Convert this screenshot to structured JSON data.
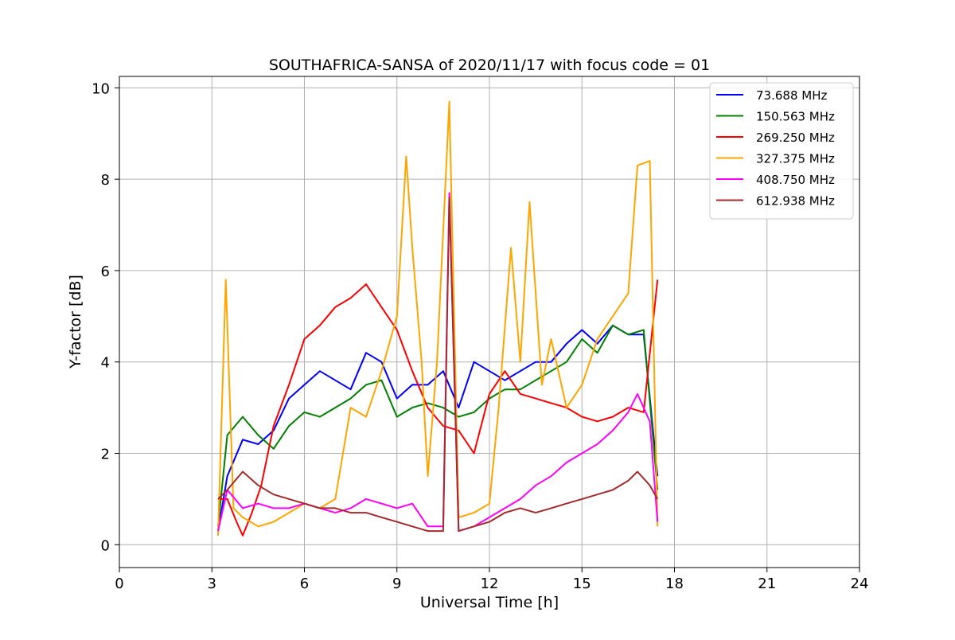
{
  "chart_data": {
    "type": "line",
    "title": "SOUTHAFRICA-SANSA of 2020/11/17 with focus code = 01",
    "xlabel": "Universal Time [h]",
    "ylabel": "Y-factor [dB]",
    "xlim": [
      0,
      24
    ],
    "ylim": [
      -0.5,
      10.25
    ],
    "xticks": [
      0,
      3,
      6,
      9,
      12,
      15,
      18,
      21,
      24
    ],
    "yticks": [
      0,
      2,
      4,
      6,
      8,
      10
    ],
    "grid": true,
    "legend_position": "top-right",
    "series": [
      {
        "name": "73.688 MHz",
        "color": "#0000ff",
        "x": [
          3.2,
          3.5,
          4.0,
          4.5,
          5.0,
          5.5,
          6.0,
          6.5,
          7.0,
          7.5,
          8.0,
          8.5,
          9.0,
          9.5,
          10.0,
          10.5,
          11.0,
          11.5,
          12.0,
          12.5,
          13.0,
          13.5,
          14.0,
          14.5,
          15.0,
          15.5,
          16.0,
          16.5,
          17.0,
          17.45
        ],
        "y": [
          0.3,
          1.5,
          2.3,
          2.2,
          2.5,
          3.2,
          3.5,
          3.8,
          3.6,
          3.4,
          4.2,
          4.0,
          3.2,
          3.5,
          3.5,
          3.8,
          3.0,
          4.0,
          3.8,
          3.6,
          3.8,
          4.0,
          4.0,
          4.4,
          4.7,
          4.4,
          4.8,
          4.6,
          4.6,
          1.5
        ]
      },
      {
        "name": "150.563 MHz",
        "color": "#008000",
        "x": [
          3.2,
          3.5,
          4.0,
          4.5,
          5.0,
          5.5,
          6.0,
          6.5,
          7.0,
          7.5,
          8.0,
          8.5,
          9.0,
          9.5,
          10.0,
          10.5,
          11.0,
          11.5,
          12.0,
          12.5,
          13.0,
          13.5,
          14.0,
          14.5,
          15.0,
          15.5,
          16.0,
          16.5,
          17.0,
          17.45
        ],
        "y": [
          0.4,
          2.4,
          2.8,
          2.4,
          2.1,
          2.6,
          2.9,
          2.8,
          3.0,
          3.2,
          3.5,
          3.6,
          2.8,
          3.0,
          3.1,
          3.0,
          2.8,
          2.9,
          3.2,
          3.4,
          3.4,
          3.6,
          3.8,
          4.0,
          4.5,
          4.2,
          4.8,
          4.6,
          4.7,
          1.2
        ]
      },
      {
        "name": "269.250 MHz",
        "color": "#ff0000",
        "x": [
          3.2,
          3.5,
          3.8,
          4.0,
          4.3,
          4.6,
          5.0,
          5.5,
          6.0,
          6.5,
          7.0,
          7.5,
          8.0,
          8.5,
          9.0,
          9.5,
          10.0,
          10.5,
          11.0,
          11.5,
          12.0,
          12.5,
          13.0,
          13.5,
          14.0,
          14.5,
          15.0,
          15.5,
          16.0,
          16.5,
          17.0,
          17.45
        ],
        "y": [
          1.0,
          1.0,
          0.5,
          0.2,
          0.7,
          1.3,
          2.6,
          3.5,
          4.5,
          4.8,
          5.2,
          5.4,
          5.7,
          5.2,
          4.7,
          3.8,
          3.0,
          2.6,
          2.5,
          2.0,
          3.3,
          3.8,
          3.3,
          3.2,
          3.1,
          3.0,
          2.8,
          2.7,
          2.8,
          3.0,
          2.9,
          5.8
        ]
      },
      {
        "name": "327.375 MHz",
        "color": "#ffa500",
        "x": [
          3.2,
          3.45,
          3.7,
          4.0,
          4.5,
          5.0,
          5.5,
          6.0,
          6.5,
          7.0,
          7.5,
          8.0,
          8.5,
          9.0,
          9.3,
          9.5,
          9.8,
          10.0,
          10.3,
          10.7,
          11.0,
          11.5,
          12.0,
          12.3,
          12.7,
          13.0,
          13.3,
          13.7,
          14.0,
          14.5,
          15.0,
          15.5,
          16.0,
          16.5,
          16.8,
          17.2,
          17.45
        ],
        "y": [
          0.2,
          5.8,
          0.8,
          0.6,
          0.4,
          0.5,
          0.7,
          0.9,
          0.8,
          1.0,
          3.0,
          2.8,
          3.8,
          5.0,
          8.5,
          6.5,
          4.0,
          1.5,
          4.0,
          9.7,
          0.6,
          0.7,
          0.9,
          3.0,
          6.5,
          4.0,
          7.5,
          3.5,
          4.5,
          3.0,
          3.5,
          4.5,
          5.0,
          5.5,
          8.3,
          8.4,
          0.4
        ]
      },
      {
        "name": "408.750 MHz",
        "color": "#ff00ff",
        "x": [
          3.2,
          3.5,
          4.0,
          4.5,
          5.0,
          5.5,
          6.0,
          6.5,
          7.0,
          7.5,
          8.0,
          8.5,
          9.0,
          9.5,
          10.0,
          10.5,
          10.7,
          11.0,
          11.5,
          12.0,
          12.5,
          13.0,
          13.5,
          14.0,
          14.5,
          15.0,
          15.5,
          16.0,
          16.5,
          16.8,
          17.2,
          17.45
        ],
        "y": [
          0.3,
          1.2,
          0.8,
          0.9,
          0.8,
          0.8,
          0.9,
          0.8,
          0.7,
          0.8,
          1.0,
          0.9,
          0.8,
          0.9,
          0.4,
          0.4,
          7.7,
          0.3,
          0.4,
          0.6,
          0.8,
          1.0,
          1.3,
          1.5,
          1.8,
          2.0,
          2.2,
          2.5,
          2.9,
          3.3,
          2.7,
          0.5
        ]
      },
      {
        "name": "612.938 MHz",
        "color": "#a52a2a",
        "x": [
          3.2,
          3.5,
          4.0,
          4.5,
          5.0,
          5.5,
          6.0,
          6.5,
          7.0,
          7.5,
          8.0,
          8.5,
          9.0,
          9.5,
          10.0,
          10.5,
          10.7,
          11.0,
          11.5,
          12.0,
          12.5,
          13.0,
          13.5,
          14.0,
          14.5,
          15.0,
          15.5,
          16.0,
          16.5,
          16.8,
          17.2,
          17.45
        ],
        "y": [
          1.0,
          1.2,
          1.6,
          1.3,
          1.1,
          1.0,
          0.9,
          0.8,
          0.8,
          0.7,
          0.7,
          0.6,
          0.5,
          0.4,
          0.3,
          0.3,
          7.6,
          0.3,
          0.4,
          0.5,
          0.7,
          0.8,
          0.7,
          0.8,
          0.9,
          1.0,
          1.1,
          1.2,
          1.4,
          1.6,
          1.3,
          1.0
        ]
      }
    ]
  }
}
